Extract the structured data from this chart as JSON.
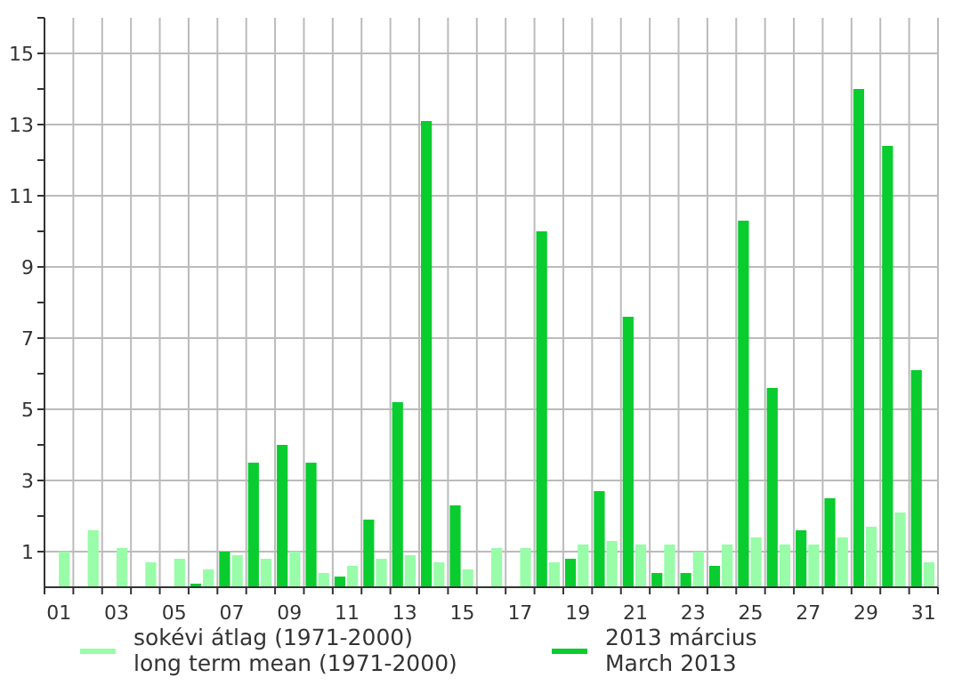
{
  "chart_data": {
    "type": "bar",
    "categories": [
      "01",
      null,
      "03",
      null,
      "05",
      null,
      "07",
      null,
      "09",
      null,
      "11",
      null,
      "13",
      null,
      "15",
      null,
      "17",
      null,
      "19",
      null,
      "21",
      null,
      "23",
      null,
      "25",
      null,
      "27",
      null,
      "29",
      null,
      "31"
    ],
    "series": [
      {
        "name": "sokévi átlag (1971-2000)\nlong term mean (1971-2000)",
        "color": "#99fca8",
        "values": [
          1.0,
          1.6,
          1.1,
          0.7,
          0.8,
          0.5,
          0.9,
          0.8,
          1.0,
          0.4,
          0.6,
          0.8,
          0.9,
          0.7,
          0.5,
          1.1,
          1.1,
          0.7,
          1.2,
          1.3,
          1.2,
          1.2,
          1.0,
          1.2,
          1.4,
          1.2,
          1.2,
          1.4,
          1.7,
          2.1,
          0.7
        ]
      },
      {
        "name": "2013 március\nMarch 2013",
        "color": "#09cc2e",
        "values": [
          0,
          0,
          0,
          0,
          0,
          0.1,
          1.0,
          3.5,
          4.0,
          3.5,
          0.3,
          1.9,
          5.2,
          13.1,
          2.3,
          0,
          0,
          10.0,
          0.8,
          2.7,
          7.6,
          0.4,
          0.4,
          0.6,
          10.3,
          5.6,
          1.6,
          2.5,
          14.0,
          12.4,
          6.1
        ]
      }
    ],
    "ylim": [
      0,
      16
    ],
    "yticks": [
      1,
      {
        "value": 2,
        "label": null
      },
      3,
      {
        "value": 4,
        "label": null
      },
      5,
      {
        "value": 6,
        "label": null
      },
      7,
      {
        "value": 8,
        "label": null
      },
      9,
      {
        "value": 10,
        "label": null
      },
      11,
      {
        "value": 12,
        "label": null
      },
      13,
      {
        "value": 14,
        "label": null
      },
      15,
      {
        "value": 16,
        "label": null
      }
    ],
    "grid": true,
    "legend": "bottom"
  }
}
